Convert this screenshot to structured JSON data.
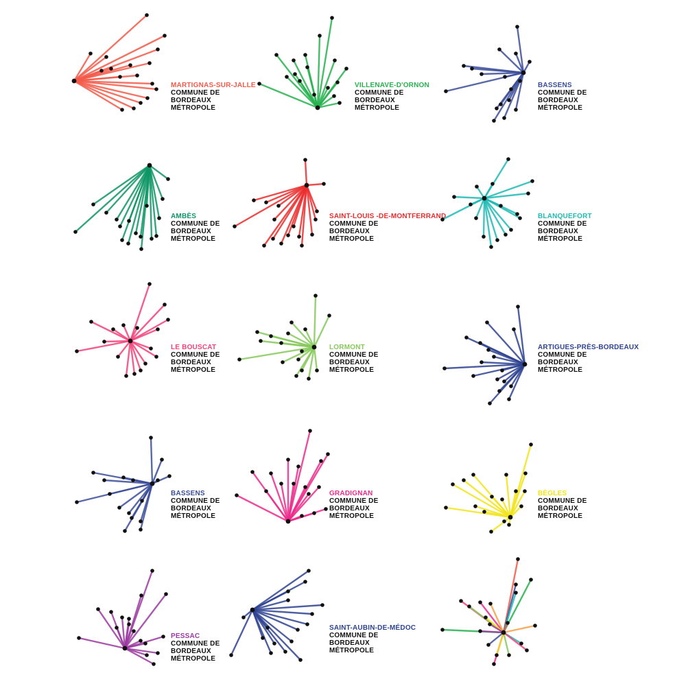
{
  "subtitle_lines": [
    "COMMUNE DE",
    "BORDEAUX",
    "MÉTROPOLE"
  ],
  "dot_color": "#111111",
  "communes": [
    {
      "name": "MARTIGNAS-SUR-JALLE",
      "color": "#f25a4a"
    },
    {
      "name": "VILLENAVE-D'ORNON",
      "color": "#27b24f"
    },
    {
      "name": "BASSENS",
      "color": "#3b4d99"
    },
    {
      "name": "AMBÈS",
      "color": "#0e9566"
    },
    {
      "name": "SAINT-LOUIS -DE-MONTFERRAND",
      "color": "#ea2d2d"
    },
    {
      "name": "BLANQUEFORT",
      "color": "#1fbab5"
    },
    {
      "name": "LE BOUSCAT",
      "color": "#f2427a"
    },
    {
      "name": "LORMONT",
      "color": "#86c95a"
    },
    {
      "name": "ARTIGUES-PRÈS-BORDEAUX",
      "color": "#2e4390"
    },
    {
      "name": "BASSENS",
      "color": "#3b4d99"
    },
    {
      "name": "GRADIGNAN",
      "color": "#ec2b8c"
    },
    {
      "name": "BÈGLES",
      "color": "#f2e418"
    },
    {
      "name": "PESSAC",
      "color": "#9b3aa0"
    },
    {
      "name": "SAINT-AUBIN-DE-MÉDOC",
      "color": "#2e4390"
    },
    {
      "name": "",
      "color": "multi",
      "palette": [
        "#f25a4a",
        "#27b24f",
        "#3b4d99",
        "#1fbab5",
        "#f2427a",
        "#86c95a",
        "#ec2b8c",
        "#f2e418",
        "#9b3aa0",
        "#f5a04a"
      ]
    }
  ]
}
